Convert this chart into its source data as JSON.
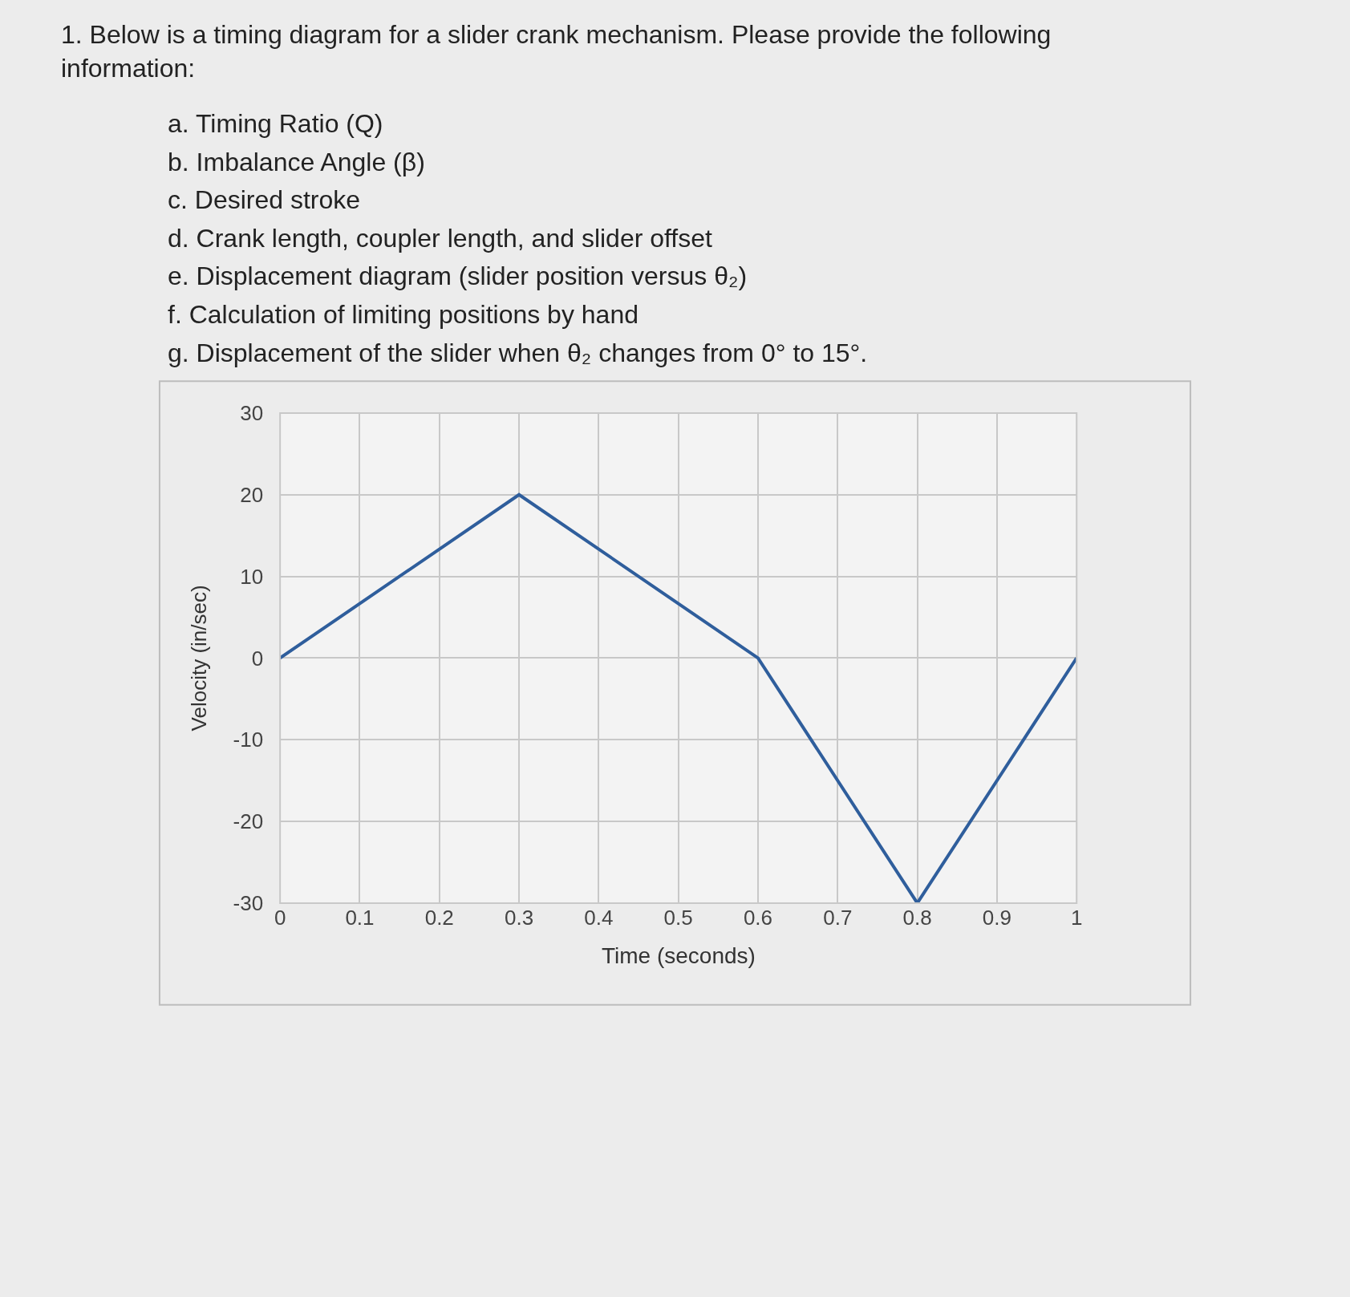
{
  "chart_data": {
    "type": "line",
    "title": "1. Below is a timing diagram for a slider crank mechanism. Please provide the following information:",
    "annotations": [
      "a. Timing Ratio (Q)",
      "b. Imbalance Angle (β)",
      "c. Desired stroke",
      "d. Crank length, coupler length, and slider offset",
      "e. Displacement diagram (slider position versus θ₂)",
      "f. Calculation of limiting positions by hand",
      "g. Displacement of the slider when θ₂ changes from 0° to 15°."
    ],
    "xlabel": "Time (seconds)",
    "ylabel": "Velocity (in/sec)",
    "x": [
      0,
      0.3,
      0.6,
      0.8,
      1
    ],
    "series": [
      {
        "color": "#2f5e9c",
        "values": [
          0,
          20,
          0,
          -30,
          0
        ]
      }
    ],
    "xlim": [
      0,
      1
    ],
    "xticks": [
      0,
      0.1,
      0.2,
      0.3,
      0.4,
      0.5,
      0.6,
      0.7,
      0.8,
      0.9,
      1
    ],
    "ylim": [
      -30,
      30
    ],
    "yticks": [
      -30,
      -20,
      -10,
      0,
      10,
      20,
      30
    ],
    "grid": true,
    "marker": "none",
    "line_style": "solid"
  }
}
